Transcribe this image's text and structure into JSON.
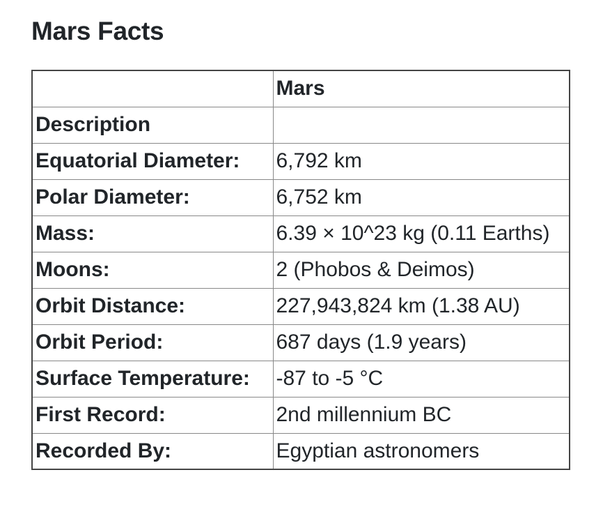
{
  "page": {
    "title": "Mars Facts"
  },
  "table": {
    "header": [
      "",
      "Mars"
    ],
    "rows": [
      {
        "label": "Description",
        "value": ""
      },
      {
        "label": "Equatorial Diameter:",
        "value": "6,792 km"
      },
      {
        "label": "Polar Diameter:",
        "value": "6,752 km"
      },
      {
        "label": "Mass:",
        "value": "6.39 × 10^23 kg (0.11 Earths)"
      },
      {
        "label": "Moons:",
        "value": "2 (Phobos & Deimos)"
      },
      {
        "label": "Orbit Distance:",
        "value": "227,943,824 km (1.38 AU)"
      },
      {
        "label": "Orbit Period:",
        "value": "687 days (1.9 years)"
      },
      {
        "label": "Surface Temperature:",
        "value": "-87 to -5 °C"
      },
      {
        "label": "First Record:",
        "value": "2nd millennium BC"
      },
      {
        "label": "Recorded By:",
        "value": "Egyptian astronomers"
      }
    ]
  }
}
